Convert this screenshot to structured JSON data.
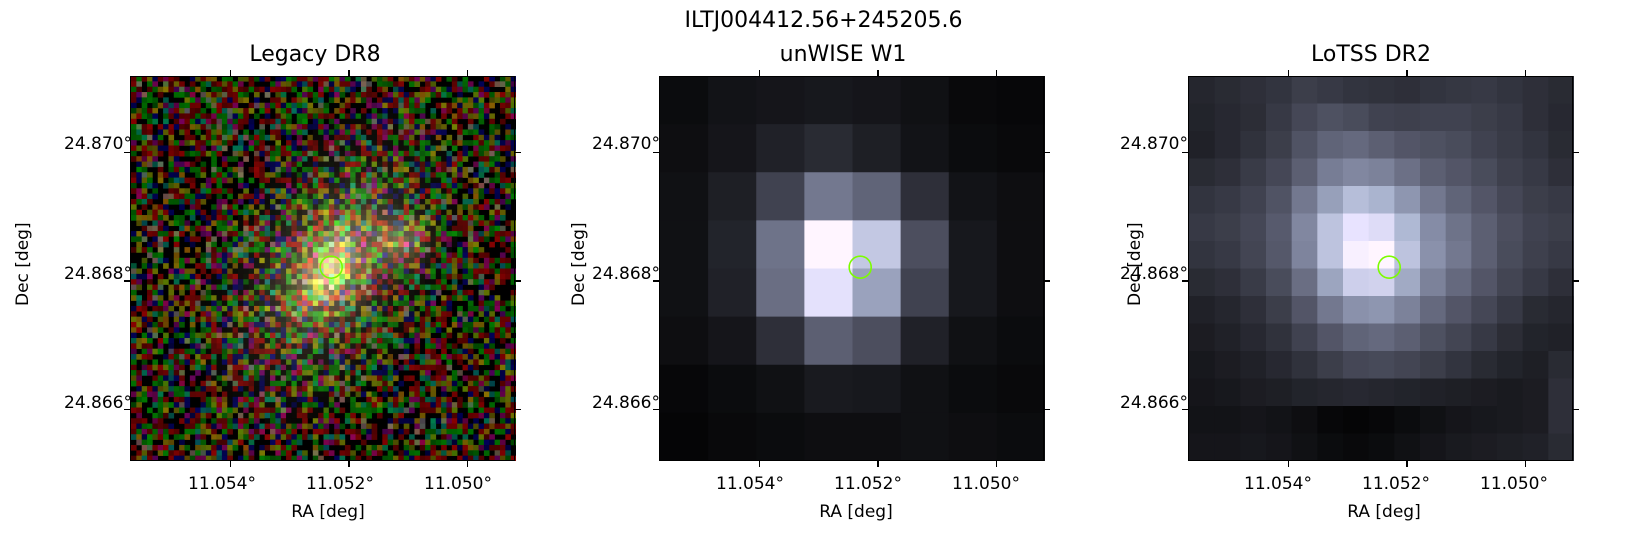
{
  "figure": {
    "suptitle": "ILTJ004412.56+245205.6",
    "xlabel": "RA [deg]",
    "ylabel": "Dec [deg]",
    "xtick_labels": [
      "11.054°",
      "11.052°",
      "11.050°"
    ],
    "ytick_labels": [
      "24.870°",
      "24.868°",
      "24.866°"
    ],
    "marker_color": "#7cfc00"
  },
  "chart_data": [
    {
      "type": "heatmap",
      "title": "Legacy DR8",
      "image": "rgb optical cutout",
      "x_ticks": [
        11.054,
        11.052,
        11.05
      ],
      "y_ticks": [
        24.87,
        24.868,
        24.866
      ],
      "marker": {
        "ra": 11.0523,
        "dec": 24.8682,
        "shape": "circle"
      }
    },
    {
      "type": "heatmap",
      "title": "unWISE W1",
      "image": "grayscale infrared cutout",
      "x_ticks": [
        11.054,
        11.052,
        11.05
      ],
      "y_ticks": [
        24.87,
        24.868,
        24.866
      ],
      "grid_values": [
        [
          0.05,
          0.08,
          0.09,
          0.1,
          0.09,
          0.07,
          0.04,
          0.03
        ],
        [
          0.06,
          0.09,
          0.14,
          0.18,
          0.13,
          0.08,
          0.05,
          0.04
        ],
        [
          0.07,
          0.13,
          0.28,
          0.5,
          0.42,
          0.2,
          0.08,
          0.06
        ],
        [
          0.07,
          0.15,
          0.48,
          1.0,
          0.82,
          0.33,
          0.1,
          0.06
        ],
        [
          0.07,
          0.14,
          0.46,
          0.92,
          0.67,
          0.28,
          0.1,
          0.06
        ],
        [
          0.06,
          0.09,
          0.2,
          0.4,
          0.33,
          0.14,
          0.07,
          0.05
        ],
        [
          0.03,
          0.05,
          0.07,
          0.11,
          0.1,
          0.07,
          0.05,
          0.04
        ],
        [
          0.02,
          0.04,
          0.05,
          0.06,
          0.06,
          0.07,
          0.06,
          0.05
        ]
      ],
      "marker": {
        "ra": 11.0523,
        "dec": 24.8682,
        "shape": "circle"
      }
    },
    {
      "type": "heatmap",
      "title": "LoTSS DR2",
      "image": "grayscale radio cutout",
      "x_ticks": [
        11.054,
        11.052,
        11.05
      ],
      "y_ticks": [
        24.87,
        24.868,
        24.866
      ],
      "grid_values": [
        [
          0.16,
          0.18,
          0.2,
          0.22,
          0.26,
          0.24,
          0.22,
          0.21,
          0.2,
          0.22,
          0.23,
          0.24,
          0.22,
          0.2,
          0.18
        ],
        [
          0.15,
          0.17,
          0.19,
          0.24,
          0.3,
          0.34,
          0.32,
          0.28,
          0.27,
          0.28,
          0.28,
          0.26,
          0.24,
          0.2,
          0.17
        ],
        [
          0.14,
          0.17,
          0.21,
          0.26,
          0.35,
          0.42,
          0.44,
          0.4,
          0.36,
          0.34,
          0.32,
          0.28,
          0.25,
          0.22,
          0.18
        ],
        [
          0.18,
          0.2,
          0.25,
          0.3,
          0.4,
          0.52,
          0.56,
          0.54,
          0.47,
          0.4,
          0.36,
          0.32,
          0.27,
          0.24,
          0.2
        ],
        [
          0.22,
          0.24,
          0.28,
          0.35,
          0.5,
          0.66,
          0.78,
          0.74,
          0.62,
          0.5,
          0.42,
          0.36,
          0.3,
          0.26,
          0.24
        ],
        [
          0.24,
          0.26,
          0.3,
          0.38,
          0.56,
          0.8,
          0.93,
          0.9,
          0.76,
          0.58,
          0.48,
          0.4,
          0.33,
          0.28,
          0.26
        ],
        [
          0.22,
          0.24,
          0.29,
          0.37,
          0.55,
          0.8,
          0.98,
          1.0,
          0.8,
          0.6,
          0.5,
          0.4,
          0.32,
          0.27,
          0.24
        ],
        [
          0.18,
          0.2,
          0.25,
          0.32,
          0.46,
          0.68,
          0.85,
          0.86,
          0.7,
          0.54,
          0.44,
          0.36,
          0.29,
          0.24,
          0.2
        ],
        [
          0.14,
          0.16,
          0.2,
          0.26,
          0.36,
          0.5,
          0.6,
          0.62,
          0.54,
          0.44,
          0.36,
          0.3,
          0.24,
          0.18,
          0.16
        ],
        [
          0.12,
          0.14,
          0.17,
          0.21,
          0.28,
          0.36,
          0.42,
          0.44,
          0.4,
          0.34,
          0.29,
          0.24,
          0.19,
          0.15,
          0.14
        ],
        [
          0.1,
          0.12,
          0.14,
          0.17,
          0.21,
          0.26,
          0.3,
          0.31,
          0.29,
          0.26,
          0.22,
          0.18,
          0.15,
          0.13,
          0.18
        ],
        [
          0.09,
          0.1,
          0.12,
          0.13,
          0.15,
          0.16,
          0.17,
          0.16,
          0.15,
          0.14,
          0.13,
          0.12,
          0.11,
          0.12,
          0.2
        ],
        [
          0.08,
          0.08,
          0.09,
          0.08,
          0.06,
          0.03,
          0.02,
          0.03,
          0.05,
          0.07,
          0.09,
          0.1,
          0.11,
          0.12,
          0.2
        ],
        [
          0.09,
          0.09,
          0.1,
          0.09,
          0.07,
          0.05,
          0.04,
          0.05,
          0.07,
          0.09,
          0.11,
          0.12,
          0.13,
          0.14,
          0.18
        ]
      ],
      "marker": {
        "ra": 11.0523,
        "dec": 24.8682,
        "shape": "circle"
      }
    }
  ]
}
